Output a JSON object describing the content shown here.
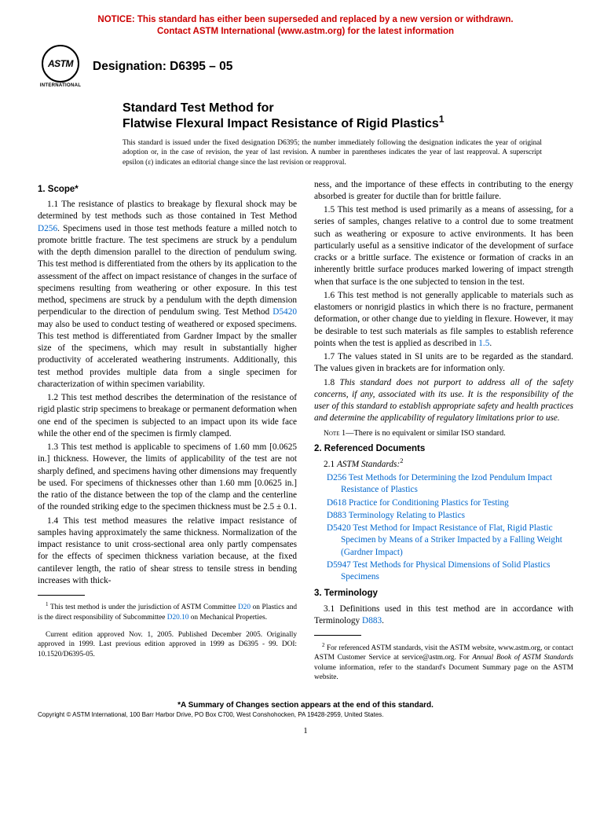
{
  "colors": {
    "notice": "#cc0000",
    "link": "#0066cc",
    "text": "#000000",
    "background": "#ffffff"
  },
  "notice": {
    "line1": "NOTICE: This standard has either been superseded and replaced by a new version or withdrawn.",
    "line2": "Contact ASTM International (www.astm.org) for the latest information"
  },
  "logo": {
    "acronym": "ASTM",
    "subtitle": "INTERNATIONAL"
  },
  "designation": "Designation: D6395 – 05",
  "title": {
    "pre": "Standard Test Method for",
    "main": "Flatwise Flexural Impact Resistance of Rigid Plastics",
    "sup": "1"
  },
  "issuance": "This standard is issued under the fixed designation D6395; the number immediately following the designation indicates the year of original adoption or, in the case of revision, the year of last revision. A number in parentheses indicates the year of last reapproval. A superscript epsilon (ε) indicates an editorial change since the last revision or reapproval.",
  "sections": {
    "scope": {
      "head": "1. Scope*",
      "p11a": "1.1 The resistance of plastics to breakage by flexural shock may be determined by test methods such as those contained in Test Method ",
      "p11_link1": "D256",
      "p11b": ". Specimens used in those test methods feature a milled notch to promote brittle fracture. The test specimens are struck by a pendulum with the depth dimension parallel to the direction of pendulum swing. This test method is differentiated from the others by its application to the assessment of the affect on impact resistance of changes in the surface of specimens resulting from weathering or other exposure. In this test method, specimens are struck by a pendulum with the depth dimension perpendicular to the direction of pendulum swing. Test Method ",
      "p11_link2": "D5420",
      "p11c": " may also be used to conduct testing of weathered or exposed specimens. This test method is differentiated from Gardner Impact by the smaller size of the specimens, which may result in substantially higher productivity of accelerated weathering instruments. Additionally, this test method provides multiple data from a single specimen for characterization of within specimen variability.",
      "p12": "1.2 This test method describes the determination of the resistance of rigid plastic strip specimens to breakage or permanent deformation when one end of the specimen is subjected to an impact upon its wide face while the other end of the specimen is firmly clamped.",
      "p13": "1.3 This test method is applicable to specimens of 1.60 mm [0.0625 in.] thickness. However, the limits of applicability of the test are not sharply defined, and specimens having other dimensions may frequently be used. For specimens of thicknesses other than 1.60 mm [0.0625 in.] the ratio of the distance between the top of the clamp and the centerline of the rounded striking edge to the specimen thickness must be 2.5 ± 0.1.",
      "p14": "1.4 This test method measures the relative impact resistance of samples having approximately the same thickness. Normalization of the impact resistance to unit cross-sectional area only partly compensates for the effects of specimen thickness variation because, at the fixed cantilever length, the ratio of shear stress to tensile stress in bending increases with thick-",
      "p14_cont": "ness, and the importance of these effects in contributing to the energy absorbed is greater for ductile than for brittle failure.",
      "p15": "1.5 This test method is used primarily as a means of assessing, for a series of samples, changes relative to a control due to some treatment such as weathering or exposure to active environments. It has been particularly useful as a sensitive indicator of the development of surface cracks or a brittle surface. The existence or formation of cracks in an inherently brittle surface produces marked lowering of impact strength when that surface is the one subjected to tension in the test.",
      "p16a": "1.6 This test method is not generally applicable to materials such as elastomers or nonrigid plastics in which there is no fracture, permanent deformation, or other change due to yielding in flexure. However, it may be desirable to test such materials as file samples to establish reference points when the test is applied as described in ",
      "p16_link": "1.5",
      "p16b": ".",
      "p17": "1.7 The values stated in SI units are to be regarded as the standard. The values given in brackets are for information only.",
      "p18": "1.8 This standard does not purport to address all of the safety concerns, if any, associated with its use. It is the responsibility of the user of this standard to establish appropriate safety and health practices and determine the applicability of regulatory limitations prior to use.",
      "note1_label": "Note",
      "note1": " 1—There is no equivalent or similar ISO standard."
    },
    "refs": {
      "head": "2. Referenced Documents",
      "sub": "2.1 ",
      "sub_italic": "ASTM Standards:",
      "sup": "2",
      "items": [
        {
          "code": "D256",
          "title": "Test Methods for Determining the Izod Pendulum Impact Resistance of Plastics"
        },
        {
          "code": "D618",
          "title": "Practice for Conditioning Plastics for Testing"
        },
        {
          "code": "D883",
          "title": "Terminology Relating to Plastics"
        },
        {
          "code": "D5420",
          "title": "Test Method for Impact Resistance of Flat, Rigid Plastic Specimen by Means of a Striker Impacted by a Falling Weight (Gardner Impact)"
        },
        {
          "code": "D5947",
          "title": "Test Methods for Physical Dimensions of Solid Plastics Specimens"
        }
      ]
    },
    "term": {
      "head": "3. Terminology",
      "p31a": "3.1 Definitions used in this test method are in accordance with Terminology ",
      "p31_link": "D883",
      "p31b": "."
    }
  },
  "footnotes": {
    "f1a": " This test method is under the jurisdiction of ASTM Committee ",
    "f1_link1": "D20",
    "f1b": " on Plastics and is the direct responsibility of Subcommittee ",
    "f1_link2": "D20.10",
    "f1c": " on Mechanical Properties.",
    "f1d": "Current edition approved Nov. 1, 2005. Published December 2005. Originally approved in 1999. Last previous edition approved in 1999 as D6395 - 99. DOI: 10.1520/D6395-05.",
    "f2a": " For referenced ASTM standards, visit the ASTM website, www.astm.org, or contact ASTM Customer Service at service@astm.org. For ",
    "f2_italic": "Annual Book of ASTM Standards",
    "f2b": " volume information, refer to the standard's Document Summary page on the ASTM website."
  },
  "footer": {
    "summary": "*A Summary of Changes section appears at the end of this standard.",
    "copyright": "Copyright © ASTM International, 100 Barr Harbor Drive, PO Box C700, West Conshohocken, PA 19428-2959, United States.",
    "pagenum": "1"
  }
}
